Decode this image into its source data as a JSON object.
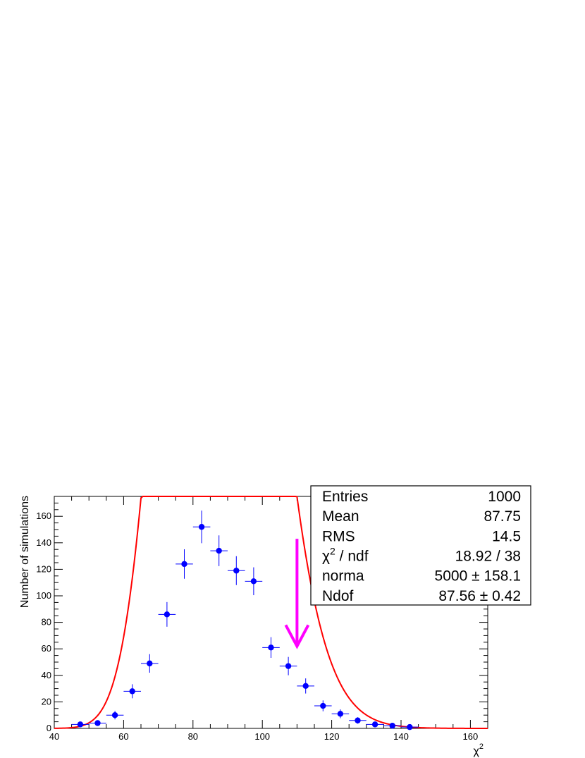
{
  "chart_data": {
    "type": "scatter",
    "xlabel": "χ",
    "xlabel_sup": "2",
    "ylabel": "Number of simulations",
    "xlim": [
      40,
      165
    ],
    "ylim": [
      0,
      175
    ],
    "x_ticks": [
      40,
      60,
      80,
      100,
      120,
      140,
      160
    ],
    "y_ticks": [
      0,
      20,
      40,
      60,
      80,
      100,
      120,
      140,
      160
    ],
    "points": {
      "x": [
        47.5,
        52.5,
        57.5,
        62.5,
        67.5,
        72.5,
        77.5,
        82.5,
        87.5,
        92.5,
        97.5,
        102.5,
        107.5,
        112.5,
        117.5,
        122.5,
        127.5,
        132.5,
        137.5,
        142.5
      ],
      "y": [
        3,
        4,
        10,
        28,
        49,
        86,
        124,
        152,
        134,
        119,
        111,
        61,
        47,
        32,
        17,
        11,
        6,
        3,
        2,
        1
      ],
      "x_err": 2.5,
      "y_err": [
        1.7,
        2.0,
        3.2,
        5.3,
        7.0,
        9.3,
        11.1,
        12.3,
        11.6,
        10.9,
        10.5,
        7.8,
        6.9,
        5.7,
        4.1,
        3.3,
        2.4,
        1.7,
        1.4,
        1.0
      ],
      "color": "#0000ff"
    },
    "fit": {
      "norma": 5000,
      "ndof": 87.56,
      "bin_width": 5,
      "color": "#ff0000"
    },
    "marker_arrow": {
      "x": 110,
      "y_top": 143,
      "y_bottom": 62,
      "color": "#ff00ff"
    },
    "stats_box": {
      "rows": [
        {
          "label": "Entries",
          "value": "1000"
        },
        {
          "label": "Mean",
          "value": "87.75"
        },
        {
          "label": "RMS",
          "value": "14.5"
        },
        {
          "label": "χ",
          "label_sup": "2",
          "label_rest": " / ndf",
          "value": "18.92 / 38"
        },
        {
          "label": "norma",
          "value": "5000 ± 158.1"
        },
        {
          "label": "Ndof",
          "value": "87.56 ± 0.42"
        }
      ]
    }
  }
}
